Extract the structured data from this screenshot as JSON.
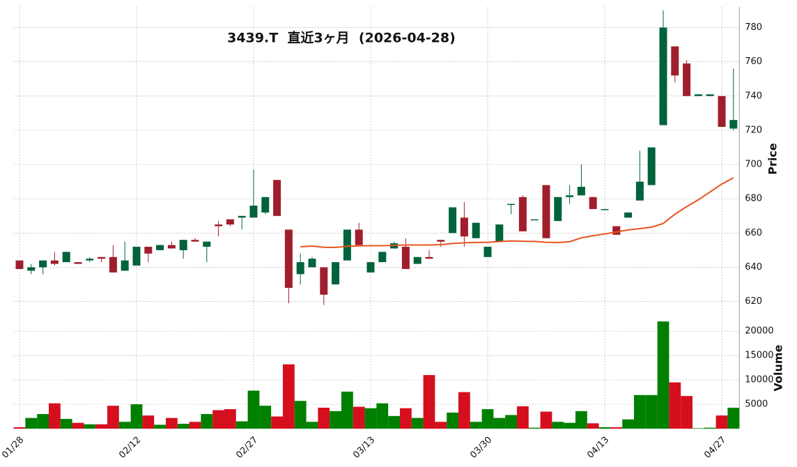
{
  "chart_data": {
    "type": "candlestick",
    "title": "3439.T  直近3ヶ月  (2026-04-28)",
    "ylabel": "Price",
    "y2label": "Volume",
    "categories": [
      "01/28",
      null,
      null,
      null,
      null,
      null,
      null,
      null,
      null,
      null,
      "02/12",
      null,
      null,
      null,
      null,
      null,
      null,
      null,
      null,
      null,
      "02/27",
      null,
      null,
      null,
      null,
      null,
      null,
      null,
      null,
      null,
      "03/13",
      null,
      null,
      null,
      null,
      null,
      null,
      null,
      null,
      null,
      "03/30",
      null,
      null,
      null,
      null,
      null,
      null,
      null,
      null,
      null,
      "04/13",
      null,
      null,
      null,
      null,
      null,
      null,
      null,
      null,
      null,
      "04/27",
      null
    ],
    "open": [
      644,
      638,
      640,
      644,
      643,
      643,
      644,
      646,
      646,
      638,
      641,
      652,
      650,
      653,
      650,
      656,
      652,
      665,
      668,
      669,
      669,
      672,
      691,
      662,
      636,
      640,
      640,
      630,
      644,
      662,
      637,
      643,
      651,
      652,
      642,
      646,
      656,
      660,
      669,
      657,
      646,
      655,
      677,
      681,
      668,
      688,
      667,
      681,
      682,
      681,
      674,
      664,
      669,
      679,
      688,
      723,
      769,
      759,
      740,
      740,
      740,
      721
    ],
    "high": [
      644,
      642,
      644,
      649,
      649,
      643,
      646,
      646,
      653,
      655,
      652,
      652,
      653,
      655,
      656,
      657,
      655,
      667,
      668,
      670,
      697,
      681,
      691,
      662,
      648,
      646,
      640,
      643,
      662,
      666,
      643,
      649,
      655,
      657,
      646,
      650,
      656,
      675,
      678,
      666,
      652,
      665,
      677,
      682,
      668,
      688,
      681,
      688,
      700,
      681,
      674,
      664,
      672,
      708,
      710,
      790,
      769,
      761,
      741,
      741,
      740,
      756
    ],
    "low": [
      639,
      636,
      636,
      641,
      643,
      642,
      643,
      643,
      637,
      638,
      641,
      643,
      650,
      651,
      645,
      655,
      643,
      658,
      664,
      662,
      669,
      671,
      670,
      619,
      630,
      640,
      618,
      630,
      644,
      653,
      637,
      643,
      651,
      639,
      642,
      645,
      652,
      660,
      652,
      657,
      646,
      655,
      671,
      661,
      668,
      657,
      667,
      677,
      682,
      674,
      674,
      659,
      669,
      679,
      688,
      723,
      748,
      740,
      740,
      740,
      722,
      720
    ],
    "close": [
      639,
      640,
      644,
      642,
      649,
      642,
      645,
      645,
      637,
      644,
      652,
      648,
      653,
      651,
      656,
      655,
      655,
      664,
      665,
      670,
      676,
      681,
      670,
      628,
      643,
      645,
      624,
      643,
      662,
      653,
      643,
      649,
      654,
      639,
      646,
      645,
      655,
      675,
      658,
      666,
      652,
      665,
      677,
      661,
      668,
      657,
      681,
      682,
      687,
      674,
      674,
      659,
      672,
      690,
      710,
      780,
      752,
      740,
      741,
      741,
      722,
      726
    ],
    "volume": [
      300,
      2200,
      3000,
      5200,
      2000,
      1200,
      900,
      900,
      4700,
      1400,
      5000,
      2700,
      800,
      2200,
      1000,
      1400,
      3000,
      3800,
      4000,
      1500,
      7800,
      4700,
      2500,
      13200,
      5700,
      1400,
      4300,
      3600,
      7600,
      4500,
      4200,
      5200,
      2600,
      4200,
      2200,
      11000,
      1400,
      3300,
      7500,
      1400,
      4000,
      2200,
      2800,
      4600,
      200,
      3500,
      1400,
      1200,
      3600,
      1100,
      300,
      300,
      1900,
      6900,
      6900,
      22000,
      9500,
      6700,
      100,
      200,
      2700,
      4300
    ],
    "ma": {
      "color": "#e8541c",
      "values": [
        null,
        null,
        null,
        null,
        null,
        null,
        null,
        null,
        null,
        null,
        null,
        null,
        null,
        null,
        null,
        null,
        null,
        null,
        null,
        null,
        null,
        null,
        null,
        null,
        652,
        652.4,
        651.7,
        651.6,
        652.3,
        652.5,
        652.6,
        652.6,
        652.8,
        653,
        653,
        653,
        653.2,
        653.9,
        654.3,
        654.5,
        654.6,
        655,
        655.4,
        655.2,
        655.1,
        654.6,
        654.5,
        654.9,
        657.2,
        658.4,
        659.5,
        660.6,
        661.8,
        662.6,
        663.4,
        665.6,
        671,
        675.4,
        679.4,
        684,
        688.6,
        692.3
      ]
    },
    "up_color": "#00633c",
    "down_color": "#a01e2c",
    "volume_up_color": "#008000",
    "volume_down_color": "#d50f1e",
    "ylim": [
      617,
      792
    ],
    "yticks": [
      620,
      640,
      660,
      680,
      700,
      720,
      740,
      760,
      780
    ],
    "y2lim": [
      0,
      24600
    ],
    "y2ticks": [
      5000,
      10000,
      15000,
      20000
    ],
    "grid": true
  }
}
